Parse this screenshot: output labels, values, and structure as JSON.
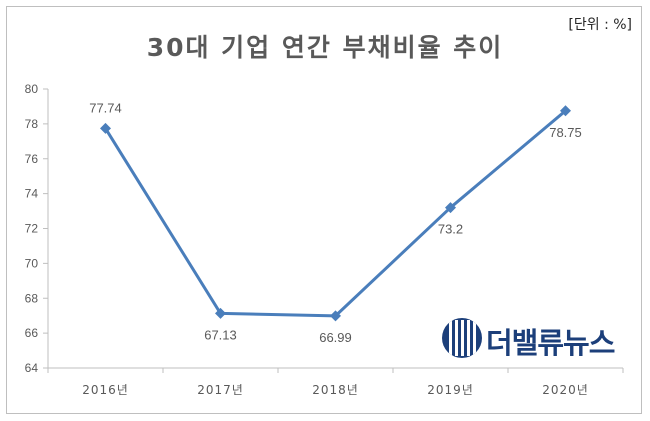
{
  "header": {
    "title": "30대 기업 연간 부채비율 추이",
    "unit": "[단위 : %]"
  },
  "logo": {
    "text": "더밸류뉴스",
    "icon": "vertical-stripes-emblem"
  },
  "colors": {
    "series": "#4a7ebb",
    "axis": "#bfbfbf",
    "text": "#595959",
    "logo": "#1c3f7a"
  },
  "chart_data": {
    "type": "line",
    "title": "30대 기업 연간 부채비율 추이",
    "xlabel": "",
    "ylabel": "",
    "categories": [
      "2016년",
      "2017년",
      "2018년",
      "2019년",
      "2020년"
    ],
    "series": [
      {
        "values": [
          77.74,
          67.13,
          66.99,
          73.2,
          78.75
        ],
        "labels": [
          "77.74",
          "67.13",
          "66.99",
          "73.2",
          "78.75"
        ]
      }
    ],
    "ylim": [
      64,
      80
    ],
    "yticks": [
      "64",
      "66",
      "68",
      "70",
      "72",
      "74",
      "76",
      "78",
      "80"
    ],
    "grid": false,
    "marker": "diamond",
    "data_label_positions": [
      "above",
      "below",
      "below",
      "below",
      "below"
    ]
  }
}
